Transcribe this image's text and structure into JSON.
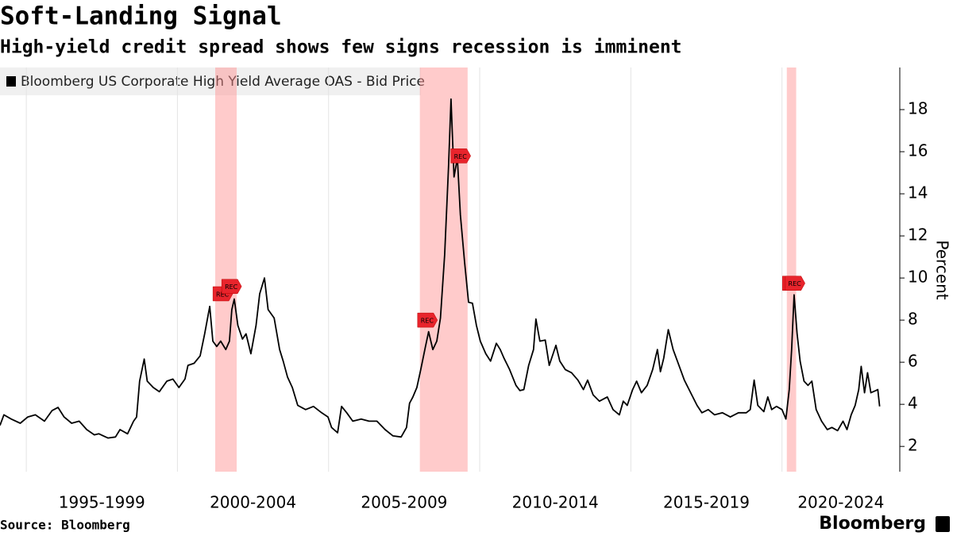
{
  "chart_data": {
    "type": "line",
    "title": "Soft-Landing Signal",
    "subtitle": "High-yield credit spread shows few signs recession is imminent",
    "y_label": "Percent",
    "source": "Source: Bloomberg",
    "logo": "Bloomberg",
    "x": [
      1994.13,
      1994.26,
      1994.5,
      1994.8,
      1995.05,
      1995.3,
      1995.6,
      1995.85,
      1996.05,
      1996.25,
      1996.5,
      1996.75,
      1997.0,
      1997.25,
      1997.4,
      1997.7,
      1997.95,
      1998.1,
      1998.35,
      1998.55,
      1998.65,
      1998.75,
      1998.9,
      1999.0,
      1999.2,
      1999.4,
      1999.65,
      1999.85,
      2000.05,
      2000.25,
      2000.35,
      2000.55,
      2000.75,
      2000.9,
      2001.07,
      2001.17,
      2001.3,
      2001.43,
      2001.6,
      2001.72,
      2001.8,
      2001.88,
      2002.0,
      2002.15,
      2002.27,
      2002.43,
      2002.6,
      2002.72,
      2002.88,
      2003.0,
      2003.2,
      2003.38,
      2003.5,
      2003.64,
      2003.8,
      2003.98,
      2004.24,
      2004.5,
      2004.77,
      2004.98,
      2005.1,
      2005.3,
      2005.43,
      2005.6,
      2005.8,
      2006.08,
      2006.34,
      2006.6,
      2006.87,
      2007.13,
      2007.4,
      2007.58,
      2007.68,
      2007.79,
      2007.92,
      2008.05,
      2008.2,
      2008.31,
      2008.45,
      2008.58,
      2008.7,
      2008.84,
      2008.97,
      2009.05,
      2009.15,
      2009.26,
      2009.36,
      2009.5,
      2009.63,
      2009.76,
      2009.89,
      2010.02,
      2010.2,
      2010.36,
      2010.55,
      2010.68,
      2010.8,
      2010.99,
      2011.2,
      2011.33,
      2011.46,
      2011.62,
      2011.78,
      2011.86,
      2011.99,
      2012.17,
      2012.3,
      2012.52,
      2012.65,
      2012.83,
      2013.04,
      2013.25,
      2013.43,
      2013.57,
      2013.75,
      2013.96,
      2014.22,
      2014.41,
      2014.62,
      2014.75,
      2014.88,
      2015.06,
      2015.19,
      2015.35,
      2015.54,
      2015.72,
      2015.88,
      2015.98,
      2016.09,
      2016.24,
      2016.4,
      2016.59,
      2016.77,
      2016.98,
      2017.19,
      2017.35,
      2017.56,
      2017.77,
      2018.03,
      2018.29,
      2018.56,
      2018.82,
      2018.95,
      2019.08,
      2019.2,
      2019.4,
      2019.53,
      2019.66,
      2019.82,
      2020.0,
      2020.13,
      2020.24,
      2020.32,
      2020.4,
      2020.5,
      2020.6,
      2020.73,
      2020.86,
      2020.99,
      2021.13,
      2021.31,
      2021.5,
      2021.65,
      2021.84,
      2022.02,
      2022.15,
      2022.29,
      2022.42,
      2022.54,
      2022.62,
      2022.73,
      2022.83,
      2022.94,
      2023.1,
      2023.17,
      2023.23
    ],
    "series": [
      {
        "name": "Bloomberg US Corporate High Yield Average OAS - Bid Price",
        "color": "#000000",
        "values": [
          3.0,
          3.5,
          3.3,
          3.1,
          3.4,
          3.5,
          3.2,
          3.7,
          3.85,
          3.4,
          3.1,
          3.2,
          2.8,
          2.55,
          2.6,
          2.4,
          2.45,
          2.8,
          2.6,
          3.2,
          3.4,
          5.1,
          6.15,
          5.1,
          4.8,
          4.6,
          5.1,
          5.2,
          4.8,
          5.2,
          5.85,
          5.95,
          6.3,
          7.35,
          8.65,
          7.0,
          6.75,
          7.0,
          6.6,
          7.0,
          8.5,
          9.0,
          7.75,
          7.1,
          7.35,
          6.4,
          7.75,
          9.25,
          10.0,
          8.5,
          8.1,
          6.6,
          6.05,
          5.3,
          4.8,
          3.95,
          3.75,
          3.9,
          3.6,
          3.4,
          2.9,
          2.65,
          3.9,
          3.6,
          3.2,
          3.3,
          3.2,
          3.2,
          2.8,
          2.5,
          2.45,
          2.9,
          4.05,
          4.35,
          4.8,
          5.65,
          6.7,
          7.45,
          6.6,
          7.0,
          8.1,
          11.1,
          15.3,
          18.5,
          14.8,
          15.7,
          13.0,
          10.75,
          8.85,
          8.8,
          7.75,
          7.0,
          6.4,
          6.05,
          6.9,
          6.6,
          6.2,
          5.65,
          4.9,
          4.65,
          4.7,
          5.85,
          6.6,
          8.05,
          7.0,
          7.05,
          5.85,
          6.8,
          6.05,
          5.65,
          5.5,
          5.15,
          4.7,
          5.15,
          4.45,
          4.15,
          4.35,
          3.75,
          3.5,
          4.15,
          3.95,
          4.7,
          5.1,
          4.55,
          4.9,
          5.65,
          6.6,
          5.55,
          6.2,
          7.55,
          6.6,
          5.85,
          5.15,
          4.55,
          3.95,
          3.6,
          3.75,
          3.5,
          3.6,
          3.4,
          3.6,
          3.6,
          3.75,
          5.15,
          3.95,
          3.65,
          4.35,
          3.75,
          3.9,
          3.75,
          3.3,
          4.7,
          6.6,
          9.2,
          7.35,
          6.05,
          5.1,
          4.9,
          5.1,
          3.75,
          3.2,
          2.8,
          2.9,
          2.75,
          3.2,
          2.8,
          3.5,
          3.95,
          4.7,
          5.8,
          4.55,
          5.5,
          4.55,
          4.65,
          4.7,
          3.9
        ]
      }
    ],
    "recessions": [
      [
        2001.25,
        2001.96
      ],
      [
        2008.02,
        2009.6
      ],
      [
        2020.16,
        2020.47
      ]
    ],
    "recession_color": "#ff8c8c",
    "annotations": [
      {
        "text": "REC",
        "x": 2001.49,
        "y": 9.25
      },
      {
        "text": "REC",
        "x": 2001.78,
        "y": 9.6
      },
      {
        "text": "REC",
        "x": 2008.26,
        "y": 8.0
      },
      {
        "text": "REC",
        "x": 2009.36,
        "y": 15.8
      },
      {
        "text": "REC",
        "x": 2020.33,
        "y": 9.75
      },
      {
        "text": "REC",
        "x": 2020.42,
        "y": 9.75
      }
    ],
    "annotation_color": "#e8242c",
    "xlim": [
      1994.13,
      2023.95
    ],
    "xticks": [
      {
        "value": 1995,
        "label": "1995-1999"
      },
      {
        "value": 2000,
        "label": "2000-2004"
      },
      {
        "value": 2005,
        "label": "2005-2009"
      },
      {
        "value": 2010,
        "label": "2010-2014"
      },
      {
        "value": 2015,
        "label": "2015-2019"
      },
      {
        "value": 2020,
        "label": "2020-2024"
      }
    ],
    "ylim": [
      0.8,
      20
    ],
    "yticks": [
      2,
      4,
      6,
      8,
      10,
      12,
      14,
      16,
      18
    ],
    "grid": "x"
  }
}
